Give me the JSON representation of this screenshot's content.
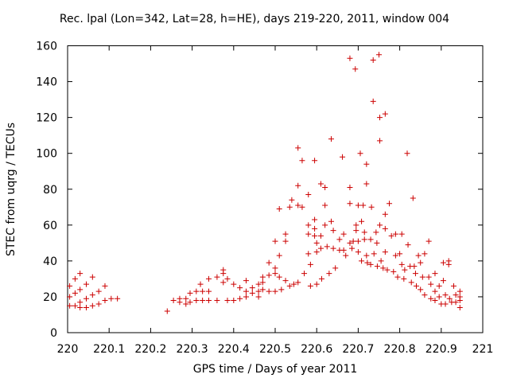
{
  "chart_data": {
    "type": "scatter",
    "title": "Rec. lpal (Lon=342, Lat=28, h=HE), days 219-220, 2011, window 004",
    "xlabel": "GPS time / Days of year 2011",
    "ylabel": "STEC from uqrg / TECUs",
    "xlim": [
      220,
      221
    ],
    "ylim": [
      0,
      160
    ],
    "x_ticks": [
      "220",
      "220.1",
      "220.2",
      "220.3",
      "220.4",
      "220.5",
      "220.6",
      "220.7",
      "220.8",
      "220.9",
      "221"
    ],
    "y_ticks": [
      "0",
      "20",
      "40",
      "60",
      "80",
      "100",
      "120",
      "140",
      "160"
    ],
    "grid": false,
    "marker": "+",
    "color": "#cc0000",
    "points": [
      [
        220.005,
        26
      ],
      [
        220.005,
        20
      ],
      [
        220.005,
        15
      ],
      [
        220.018,
        30
      ],
      [
        220.018,
        22
      ],
      [
        220.018,
        15
      ],
      [
        220.03,
        33
      ],
      [
        220.03,
        24
      ],
      [
        220.03,
        17
      ],
      [
        220.03,
        14
      ],
      [
        220.045,
        27
      ],
      [
        220.045,
        19
      ],
      [
        220.045,
        14
      ],
      [
        220.06,
        31
      ],
      [
        220.06,
        21
      ],
      [
        220.06,
        15
      ],
      [
        220.075,
        23
      ],
      [
        220.075,
        16
      ],
      [
        220.09,
        26
      ],
      [
        220.09,
        18
      ],
      [
        220.105,
        19
      ],
      [
        220.12,
        19
      ],
      [
        220.24,
        12
      ],
      [
        220.255,
        18
      ],
      [
        220.27,
        19
      ],
      [
        220.27,
        17
      ],
      [
        220.285,
        19
      ],
      [
        220.285,
        16
      ],
      [
        220.295,
        22
      ],
      [
        220.295,
        17
      ],
      [
        220.31,
        23
      ],
      [
        220.31,
        18
      ],
      [
        220.32,
        27
      ],
      [
        220.325,
        23
      ],
      [
        220.325,
        18
      ],
      [
        220.34,
        30
      ],
      [
        220.34,
        23
      ],
      [
        220.34,
        18
      ],
      [
        220.36,
        31
      ],
      [
        220.36,
        18
      ],
      [
        220.375,
        35
      ],
      [
        220.375,
        33
      ],
      [
        220.375,
        28
      ],
      [
        220.385,
        30
      ],
      [
        220.385,
        18
      ],
      [
        220.4,
        27
      ],
      [
        220.4,
        18
      ],
      [
        220.415,
        25
      ],
      [
        220.415,
        19
      ],
      [
        220.43,
        29
      ],
      [
        220.43,
        23
      ],
      [
        220.43,
        20
      ],
      [
        220.445,
        25
      ],
      [
        220.445,
        22
      ],
      [
        220.46,
        27
      ],
      [
        220.46,
        23
      ],
      [
        220.46,
        20
      ],
      [
        220.47,
        31
      ],
      [
        220.47,
        28
      ],
      [
        220.47,
        24
      ],
      [
        220.485,
        39
      ],
      [
        220.485,
        32
      ],
      [
        220.485,
        23
      ],
      [
        220.5,
        51
      ],
      [
        220.5,
        36
      ],
      [
        220.5,
        33
      ],
      [
        220.5,
        23
      ],
      [
        220.51,
        69
      ],
      [
        220.51,
        43
      ],
      [
        220.51,
        31
      ],
      [
        220.515,
        24
      ],
      [
        220.525,
        55
      ],
      [
        220.525,
        51
      ],
      [
        220.525,
        29
      ],
      [
        220.535,
        70
      ],
      [
        220.535,
        26
      ],
      [
        220.54,
        74
      ],
      [
        220.545,
        27
      ],
      [
        220.555,
        103
      ],
      [
        220.555,
        82
      ],
      [
        220.555,
        71
      ],
      [
        220.555,
        28
      ],
      [
        220.565,
        96
      ],
      [
        220.565,
        70
      ],
      [
        220.57,
        33
      ],
      [
        220.58,
        77
      ],
      [
        220.58,
        60
      ],
      [
        220.58,
        55
      ],
      [
        220.58,
        44
      ],
      [
        220.585,
        38
      ],
      [
        220.585,
        26
      ],
      [
        220.595,
        96
      ],
      [
        220.595,
        63
      ],
      [
        220.595,
        58
      ],
      [
        220.595,
        54
      ],
      [
        220.6,
        50
      ],
      [
        220.6,
        45
      ],
      [
        220.6,
        27
      ],
      [
        220.61,
        83
      ],
      [
        220.61,
        54
      ],
      [
        220.61,
        47
      ],
      [
        220.612,
        30
      ],
      [
        220.62,
        81
      ],
      [
        220.62,
        71
      ],
      [
        220.62,
        60
      ],
      [
        220.625,
        48
      ],
      [
        220.63,
        33
      ],
      [
        220.635,
        108
      ],
      [
        220.635,
        62
      ],
      [
        220.64,
        57
      ],
      [
        220.64,
        47
      ],
      [
        220.645,
        36
      ],
      [
        220.655,
        52
      ],
      [
        220.655,
        46
      ],
      [
        220.662,
        98
      ],
      [
        220.665,
        55
      ],
      [
        220.665,
        46
      ],
      [
        220.67,
        43
      ],
      [
        220.68,
        153
      ],
      [
        220.68,
        81
      ],
      [
        220.68,
        72
      ],
      [
        220.68,
        50
      ],
      [
        220.685,
        47
      ],
      [
        220.688,
        51
      ],
      [
        220.693,
        147
      ],
      [
        220.695,
        60
      ],
      [
        220.695,
        57
      ],
      [
        220.7,
        71
      ],
      [
        220.7,
        51
      ],
      [
        220.7,
        45
      ],
      [
        220.705,
        100
      ],
      [
        220.708,
        62
      ],
      [
        220.708,
        40
      ],
      [
        220.712,
        71
      ],
      [
        220.715,
        56
      ],
      [
        220.715,
        52
      ],
      [
        220.72,
        94
      ],
      [
        220.72,
        83
      ],
      [
        220.72,
        43
      ],
      [
        220.722,
        39
      ],
      [
        220.73,
        52
      ],
      [
        220.73,
        38
      ],
      [
        220.732,
        70
      ],
      [
        220.736,
        129
      ],
      [
        220.736,
        152
      ],
      [
        220.738,
        44
      ],
      [
        220.743,
        56
      ],
      [
        220.745,
        50
      ],
      [
        220.746,
        37
      ],
      [
        220.75,
        155
      ],
      [
        220.752,
        107
      ],
      [
        220.752,
        120
      ],
      [
        220.752,
        60
      ],
      [
        220.755,
        40
      ],
      [
        220.76,
        36
      ],
      [
        220.765,
        122
      ],
      [
        220.765,
        66
      ],
      [
        220.765,
        58
      ],
      [
        220.765,
        45
      ],
      [
        220.77,
        35
      ],
      [
        220.775,
        72
      ],
      [
        220.78,
        54
      ],
      [
        220.785,
        34
      ],
      [
        220.79,
        55
      ],
      [
        220.79,
        43
      ],
      [
        220.795,
        31
      ],
      [
        220.8,
        44
      ],
      [
        220.805,
        55
      ],
      [
        220.805,
        38
      ],
      [
        220.81,
        30
      ],
      [
        220.812,
        35
      ],
      [
        220.818,
        100
      ],
      [
        220.82,
        49
      ],
      [
        220.825,
        37
      ],
      [
        220.828,
        28
      ],
      [
        220.832,
        75
      ],
      [
        220.835,
        37
      ],
      [
        220.838,
        33
      ],
      [
        220.84,
        26
      ],
      [
        220.845,
        43
      ],
      [
        220.85,
        39
      ],
      [
        220.85,
        24
      ],
      [
        220.855,
        31
      ],
      [
        220.86,
        44
      ],
      [
        220.86,
        21
      ],
      [
        220.87,
        51
      ],
      [
        220.87,
        31
      ],
      [
        220.875,
        27
      ],
      [
        220.875,
        19
      ],
      [
        220.885,
        33
      ],
      [
        220.885,
        23
      ],
      [
        220.885,
        18
      ],
      [
        220.895,
        26
      ],
      [
        220.895,
        20
      ],
      [
        220.9,
        16
      ],
      [
        220.905,
        39
      ],
      [
        220.905,
        29
      ],
      [
        220.91,
        21
      ],
      [
        220.91,
        16
      ],
      [
        220.918,
        40
      ],
      [
        220.918,
        38
      ],
      [
        220.92,
        19
      ],
      [
        220.925,
        17
      ],
      [
        220.93,
        26
      ],
      [
        220.935,
        21
      ],
      [
        220.935,
        17
      ],
      [
        220.945,
        23
      ],
      [
        220.945,
        20
      ],
      [
        220.945,
        18
      ],
      [
        220.945,
        14
      ]
    ]
  }
}
